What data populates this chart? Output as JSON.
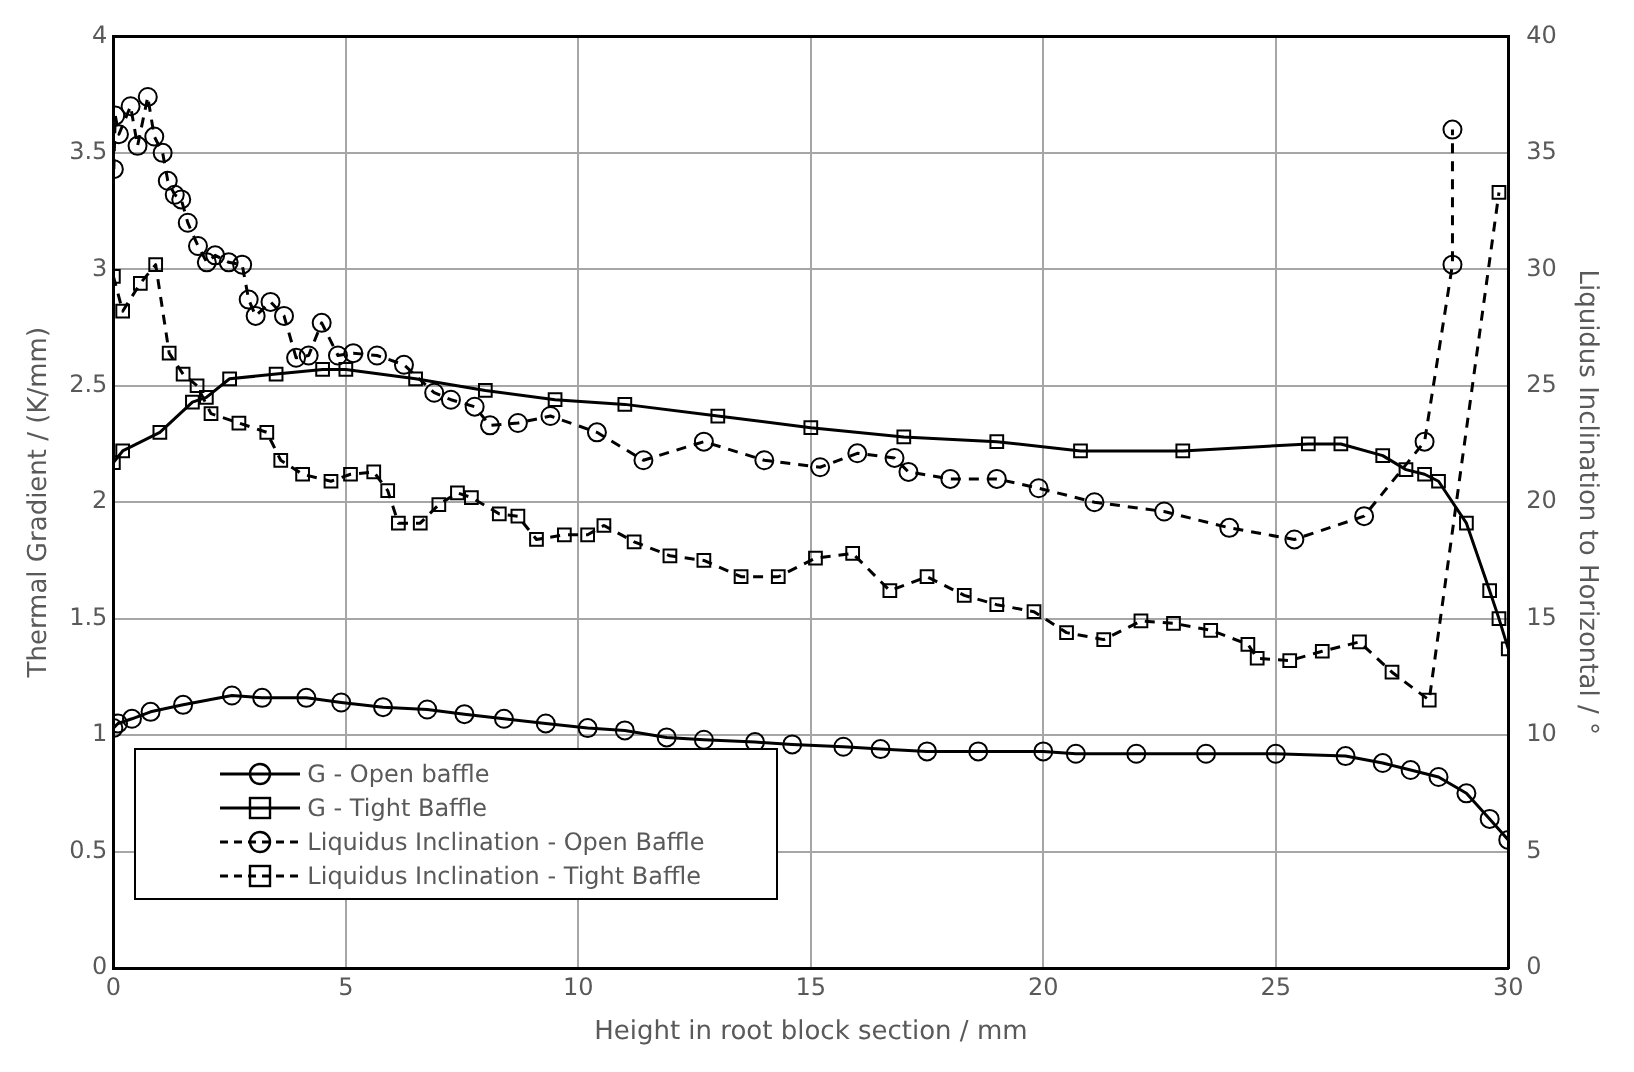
{
  "chart_data": {
    "type": "line",
    "xlabel": "Height in root block section / mm",
    "ylabel": "Thermal Gradient / (K/mm)",
    "y2label": "Liquidus Inclination to Horizontal / °",
    "xlim": [
      0,
      30
    ],
    "xticks": [
      0,
      5,
      10,
      15,
      20,
      25,
      30
    ],
    "ylim": [
      0,
      4
    ],
    "yticks": [
      0,
      0.5,
      1,
      1.5,
      2,
      2.5,
      3,
      3.5,
      4
    ],
    "y2lim": [
      0,
      40
    ],
    "y2ticks": [
      0,
      5,
      10,
      15,
      20,
      25,
      30,
      35,
      40
    ],
    "grid": true,
    "legend": "bottom left",
    "series": [
      {
        "name": "G - Open baffle",
        "color": "#000000",
        "marker": "circle",
        "line_style": "solid",
        "x": [
          0,
          0.1,
          0.4,
          0.8,
          1.5,
          2.55,
          3.2,
          4.15,
          4.9,
          5.8,
          6.75,
          7.55,
          8.4,
          9.3,
          10.2,
          11,
          11.9,
          12.7,
          13.8,
          14.6,
          15.7,
          16.5,
          17.5,
          18.6,
          20,
          20.7,
          22,
          23.5,
          25,
          26.5,
          27.3,
          27.9,
          28.5,
          29.1,
          29.6,
          30
        ],
        "values": [
          1.03,
          1.05,
          1.07,
          1.1,
          1.13,
          1.17,
          1.16,
          1.16,
          1.14,
          1.12,
          1.11,
          1.09,
          1.07,
          1.05,
          1.03,
          1.02,
          0.99,
          0.98,
          0.97,
          0.96,
          0.95,
          0.94,
          0.93,
          0.93,
          0.93,
          0.92,
          0.92,
          0.92,
          0.92,
          0.91,
          0.88,
          0.85,
          0.82,
          0.75,
          0.64,
          0.55
        ]
      },
      {
        "name": "G - Tight Baffle",
        "color": "#000000",
        "marker": "square",
        "line_style": "solid",
        "x": [
          0,
          0.2,
          1,
          1.7,
          2,
          2.5,
          3.5,
          4.5,
          5,
          6.5,
          8,
          9.5,
          11,
          13,
          15,
          17,
          19,
          20.8,
          23,
          25.7,
          26.4,
          27.3,
          27.8,
          28.2,
          28.5,
          29.1,
          29.6,
          29.8,
          30
        ],
        "values": [
          2.17,
          2.22,
          2.3,
          2.43,
          2.45,
          2.53,
          2.55,
          2.57,
          2.57,
          2.53,
          2.48,
          2.44,
          2.42,
          2.37,
          2.32,
          2.28,
          2.26,
          2.22,
          2.22,
          2.25,
          2.25,
          2.2,
          2.14,
          2.12,
          2.09,
          1.91,
          1.62,
          1.5,
          1.37
        ]
      },
      {
        "name": "Liquidus Inclination - Open Baffle",
        "color": "#000000",
        "marker": "circle",
        "line_style": "dashed",
        "axis": "y2",
        "x": [
          0.01,
          0.04,
          0.12,
          0.37,
          0.52,
          0.74,
          0.88,
          1.06,
          1.17,
          1.32,
          1.46,
          1.6,
          1.82,
          2.01,
          2.19,
          2.48,
          2.77,
          2.91,
          3.06,
          3.38,
          3.67,
          3.93,
          4.2,
          4.48,
          4.83,
          5.16,
          5.67,
          6.25,
          6.9,
          7.26,
          7.77,
          8.1,
          8.7,
          9.4,
          10.4,
          11.4,
          12.7,
          14,
          15.2,
          16,
          16.8,
          17.1,
          18,
          19,
          19.9,
          21.1,
          22.6,
          24,
          25.4,
          26.9,
          28.2,
          28.8,
          28.8
        ],
        "values": [
          34.3,
          36.6,
          35.8,
          37,
          35.3,
          37.4,
          35.7,
          35,
          33.8,
          33.2,
          33,
          32,
          31,
          30.3,
          30.6,
          30.3,
          30.2,
          28.7,
          28,
          28.6,
          28,
          26.2,
          26.3,
          27.7,
          26.3,
          26.4,
          26.3,
          25.9,
          24.7,
          24.4,
          24.1,
          23.3,
          23.4,
          23.7,
          23,
          21.8,
          22.6,
          21.8,
          21.5,
          22.1,
          21.9,
          21.3,
          21,
          21,
          20.6,
          20,
          19.6,
          18.9,
          18.4,
          19.4,
          22.6,
          30.2,
          36
        ]
      },
      {
        "name": "Liquidus Inclination - Tight Baffle",
        "color": "#000000",
        "marker": "square",
        "line_style": "dashed",
        "axis": "y2",
        "x": [
          0,
          0.2,
          0.58,
          0.91,
          1.2,
          1.5,
          1.8,
          2.1,
          2.7,
          3.3,
          3.6,
          4.07,
          4.68,
          5.1,
          5.6,
          5.9,
          6.13,
          6.6,
          7,
          7.4,
          7.7,
          8.3,
          8.7,
          9.1,
          9.7,
          10.2,
          10.55,
          11.2,
          11.97,
          12.7,
          13.5,
          14.3,
          15.1,
          15.9,
          16.7,
          17.5,
          18.3,
          19,
          19.8,
          20.5,
          21.3,
          22.1,
          22.8,
          23.6,
          24.4,
          24.6,
          25.3,
          26,
          26.8,
          27.5,
          28.3,
          29.8
        ],
        "values": [
          29.7,
          28.2,
          29.4,
          30.2,
          26.4,
          25.5,
          25,
          23.8,
          23.4,
          23,
          21.8,
          21.2,
          20.9,
          21.2,
          21.3,
          20.5,
          19.1,
          19.1,
          19.9,
          20.4,
          20.2,
          19.5,
          19.4,
          18.4,
          18.6,
          18.6,
          19,
          18.3,
          17.7,
          17.5,
          16.8,
          16.8,
          17.6,
          17.8,
          16.2,
          16.8,
          16,
          15.6,
          15.3,
          14.4,
          14.1,
          14.9,
          14.8,
          14.5,
          13.9,
          13.3,
          13.2,
          13.6,
          14,
          12.7,
          11.5,
          33.3
        ]
      }
    ]
  }
}
